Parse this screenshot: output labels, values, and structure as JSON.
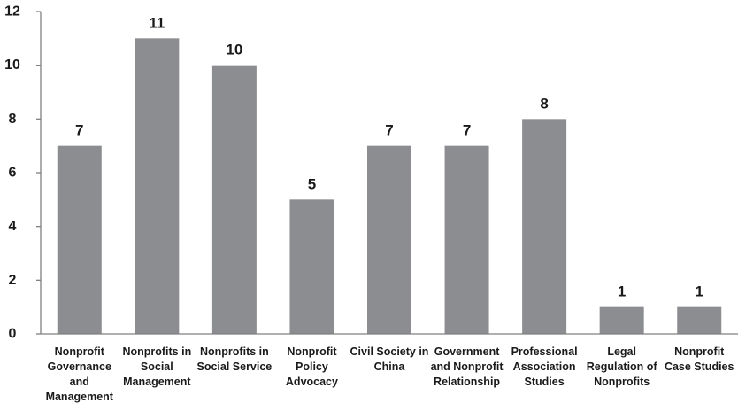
{
  "chart_data": {
    "type": "bar",
    "categories": [
      "Nonprofit Governance and Management",
      "Nonprofits in Social Management",
      "Nonprofits in Social Service",
      "Nonprofit Policy Advocacy",
      "Civil Society in China",
      "Government and Nonprofit Relationship",
      "Professional Association Studies",
      "Legal Regulation of Nonprofits",
      "Nonprofit Case Studies"
    ],
    "category_lines": [
      [
        "Nonprofit",
        "Governance",
        "and",
        "Management"
      ],
      [
        "Nonprofits in",
        "Social",
        "Management"
      ],
      [
        "Nonprofits in",
        "Social Service"
      ],
      [
        "Nonprofit",
        "Policy",
        "Advocacy"
      ],
      [
        "Civil Society in",
        "China"
      ],
      [
        "Government",
        "and Nonprofit",
        "Relationship"
      ],
      [
        "Professional",
        "Association",
        "Studies"
      ],
      [
        "Legal",
        "Regulation of",
        "Nonprofits"
      ],
      [
        "Nonprofit",
        "Case Studies"
      ]
    ],
    "values": [
      7,
      11,
      10,
      5,
      7,
      7,
      8,
      1,
      1
    ],
    "data_labels": [
      "7",
      "11",
      "10",
      "5",
      "7",
      "7",
      "8",
      "1",
      "1"
    ],
    "yticks": [
      0,
      2,
      4,
      6,
      8,
      10,
      12
    ],
    "ylim": [
      0,
      12
    ],
    "bar_color": "#8c8d90",
    "grid": false,
    "legend": "none"
  }
}
